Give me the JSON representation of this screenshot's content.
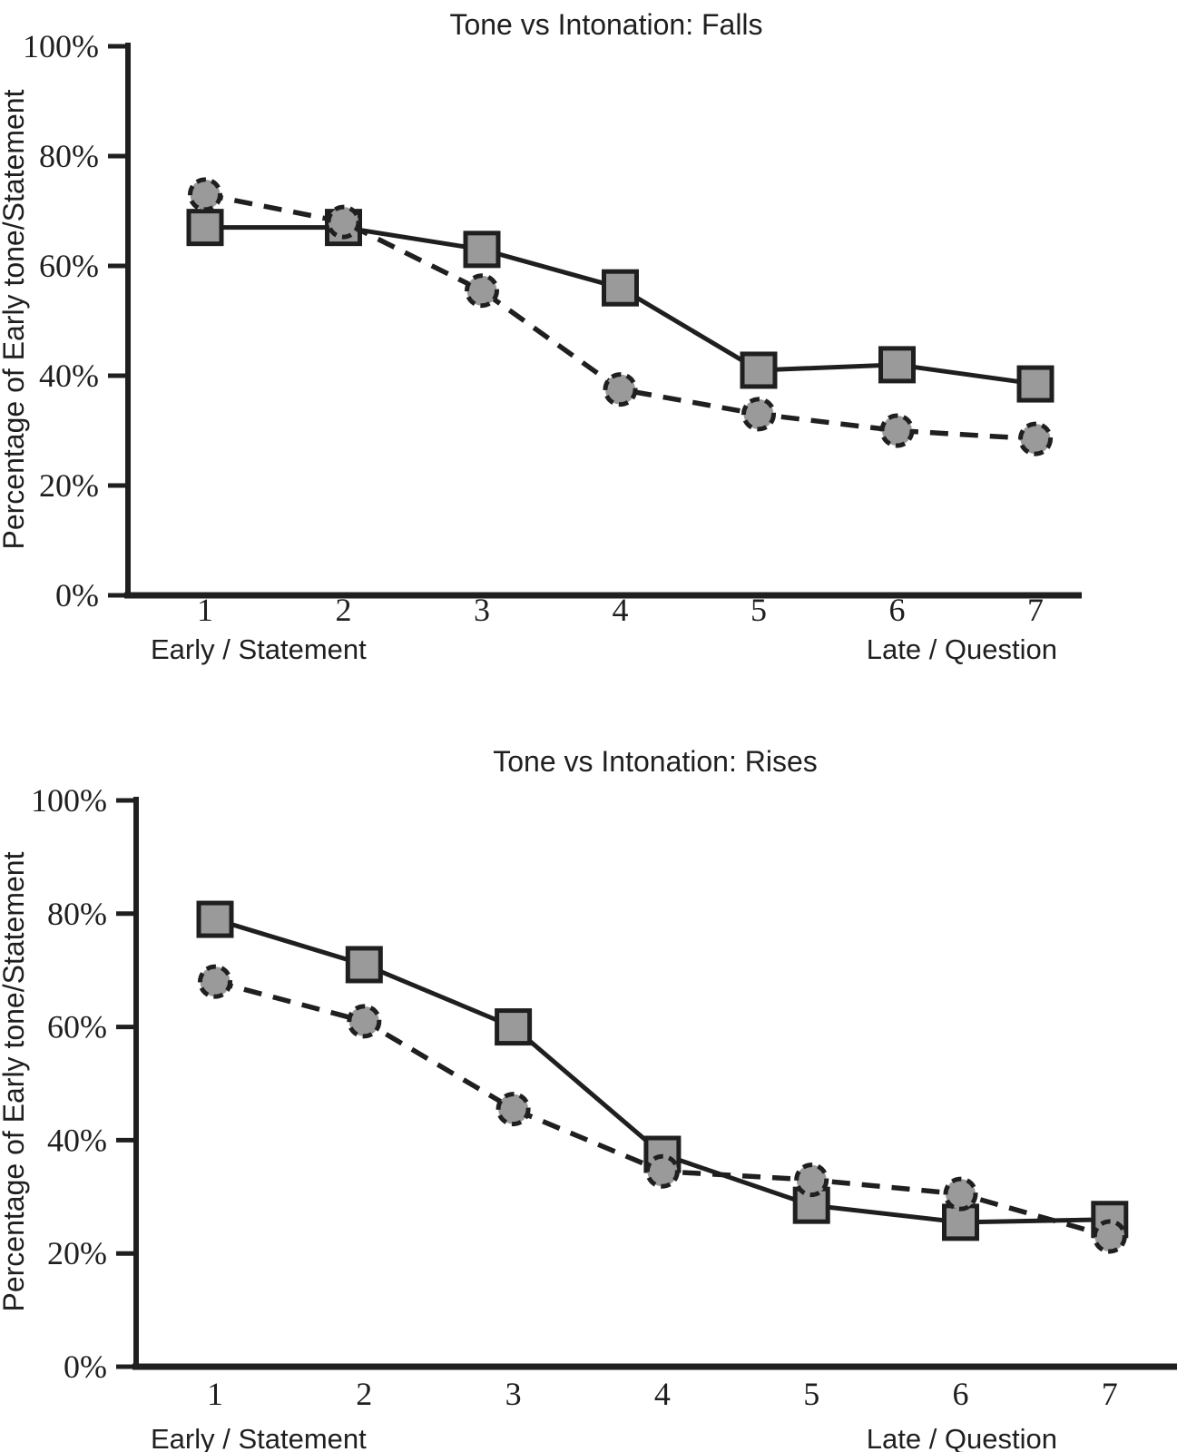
{
  "colors": {
    "ink": "#1f1f1f",
    "marker_fill": "#9a9a9a",
    "background": "#ffffff"
  },
  "chart_data": [
    {
      "type": "line",
      "title": "Tone vs Intonation: Falls",
      "ylabel": "Percentage of Early tone/Statement",
      "xlabel": "",
      "ylim": [
        0,
        100
      ],
      "ytick_labels": [
        "100%",
        "80%",
        "60%",
        "40%",
        "20%",
        "0%"
      ],
      "x": [
        1,
        2,
        3,
        4,
        5,
        6,
        7
      ],
      "xtick_labels": [
        "1",
        "2",
        "3",
        "4",
        "5",
        "6",
        "7"
      ],
      "x_left_annotation": "Early / Statement",
      "x_right_annotation": "Late / Question",
      "grid": false,
      "legend": "none",
      "series": [
        {
          "name": "square-solid",
          "marker": "square",
          "line_style": "solid",
          "values": [
            67,
            67,
            63,
            56,
            41,
            42,
            38.5
          ]
        },
        {
          "name": "circle-dashed",
          "marker": "circle",
          "line_style": "dashed",
          "values": [
            73,
            68,
            55.5,
            37.5,
            33,
            30,
            28.5
          ]
        }
      ]
    },
    {
      "type": "line",
      "title": "Tone vs Intonation: Rises",
      "ylabel": "Percentage of Early tone/Statement",
      "xlabel": "",
      "ylim": [
        0,
        100
      ],
      "ytick_labels": [
        "100%",
        "80%",
        "60%",
        "40%",
        "20%",
        "0%"
      ],
      "x": [
        1,
        2,
        3,
        4,
        5,
        6,
        7
      ],
      "xtick_labels": [
        "1",
        "2",
        "3",
        "4",
        "5",
        "6",
        "7"
      ],
      "x_left_annotation": "Early / Statement",
      "x_right_annotation": "Late / Question",
      "grid": false,
      "legend": "none",
      "series": [
        {
          "name": "square-solid",
          "marker": "square",
          "line_style": "solid",
          "values": [
            79,
            71,
            60,
            37.5,
            28.5,
            25.5,
            26
          ]
        },
        {
          "name": "circle-dashed",
          "marker": "circle",
          "line_style": "dashed",
          "values": [
            68,
            61,
            45.5,
            34.5,
            33,
            30.5,
            23
          ]
        }
      ]
    }
  ]
}
